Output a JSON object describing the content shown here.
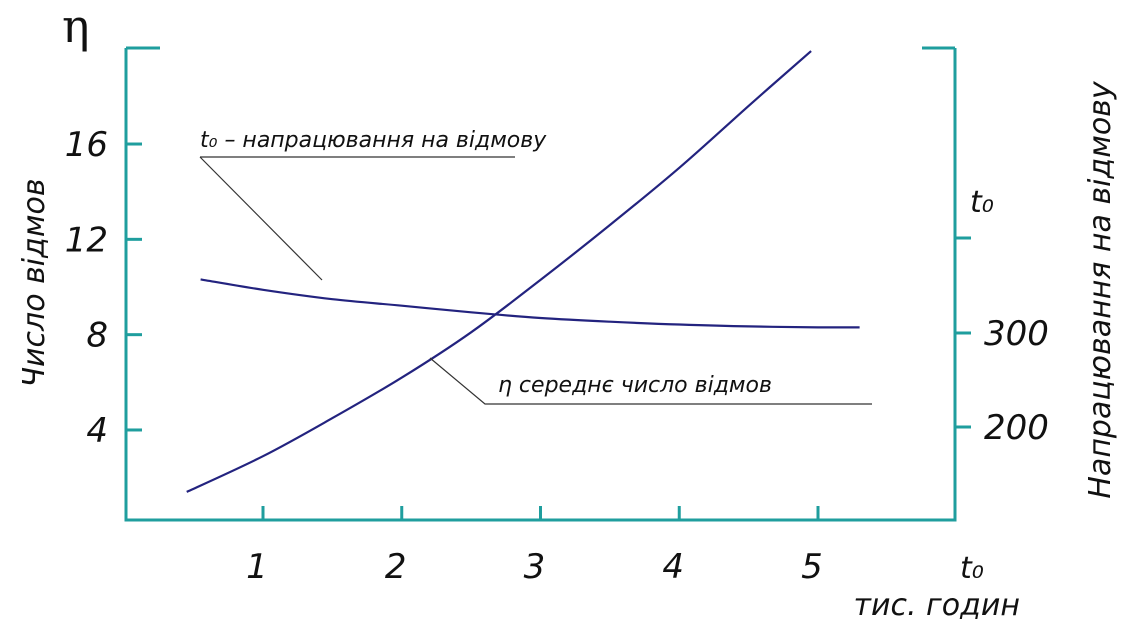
{
  "chart_data": {
    "type": "line",
    "left_axis": {
      "symbol": "η",
      "label": "Число відмов",
      "ticks": [
        4,
        8,
        12,
        16
      ],
      "range": [
        0,
        20
      ]
    },
    "right_axis": {
      "symbol": "t₀",
      "label": "Напрацювання на відмову",
      "ticks": [
        200,
        300
      ],
      "range": [
        100,
        400
      ]
    },
    "x_axis": {
      "symbol": "t₀",
      "label": "тис. годин",
      "ticks": [
        1,
        2,
        3,
        4,
        5
      ],
      "range": [
        0,
        5.5
      ]
    },
    "series": [
      {
        "name": "η середнє число відмов",
        "axis": "left",
        "x": [
          0.45,
          1.0,
          1.5,
          2.0,
          2.5,
          3.0,
          3.5,
          4.0,
          4.5,
          4.95
        ],
        "y": [
          1.4,
          2.9,
          4.5,
          6.2,
          8.1,
          10.3,
          12.6,
          15.0,
          17.6,
          19.9
        ]
      },
      {
        "name": "t₀ – напрацювання на відмову",
        "axis": "right",
        "x": [
          0.55,
          1.0,
          1.5,
          2.0,
          2.5,
          3.0,
          3.5,
          4.0,
          4.5,
          5.0,
          5.3
        ],
        "y": [
          357,
          346,
          336,
          329,
          322,
          316,
          312,
          309,
          307,
          306,
          306
        ]
      }
    ],
    "grid": false,
    "legend": "none"
  }
}
